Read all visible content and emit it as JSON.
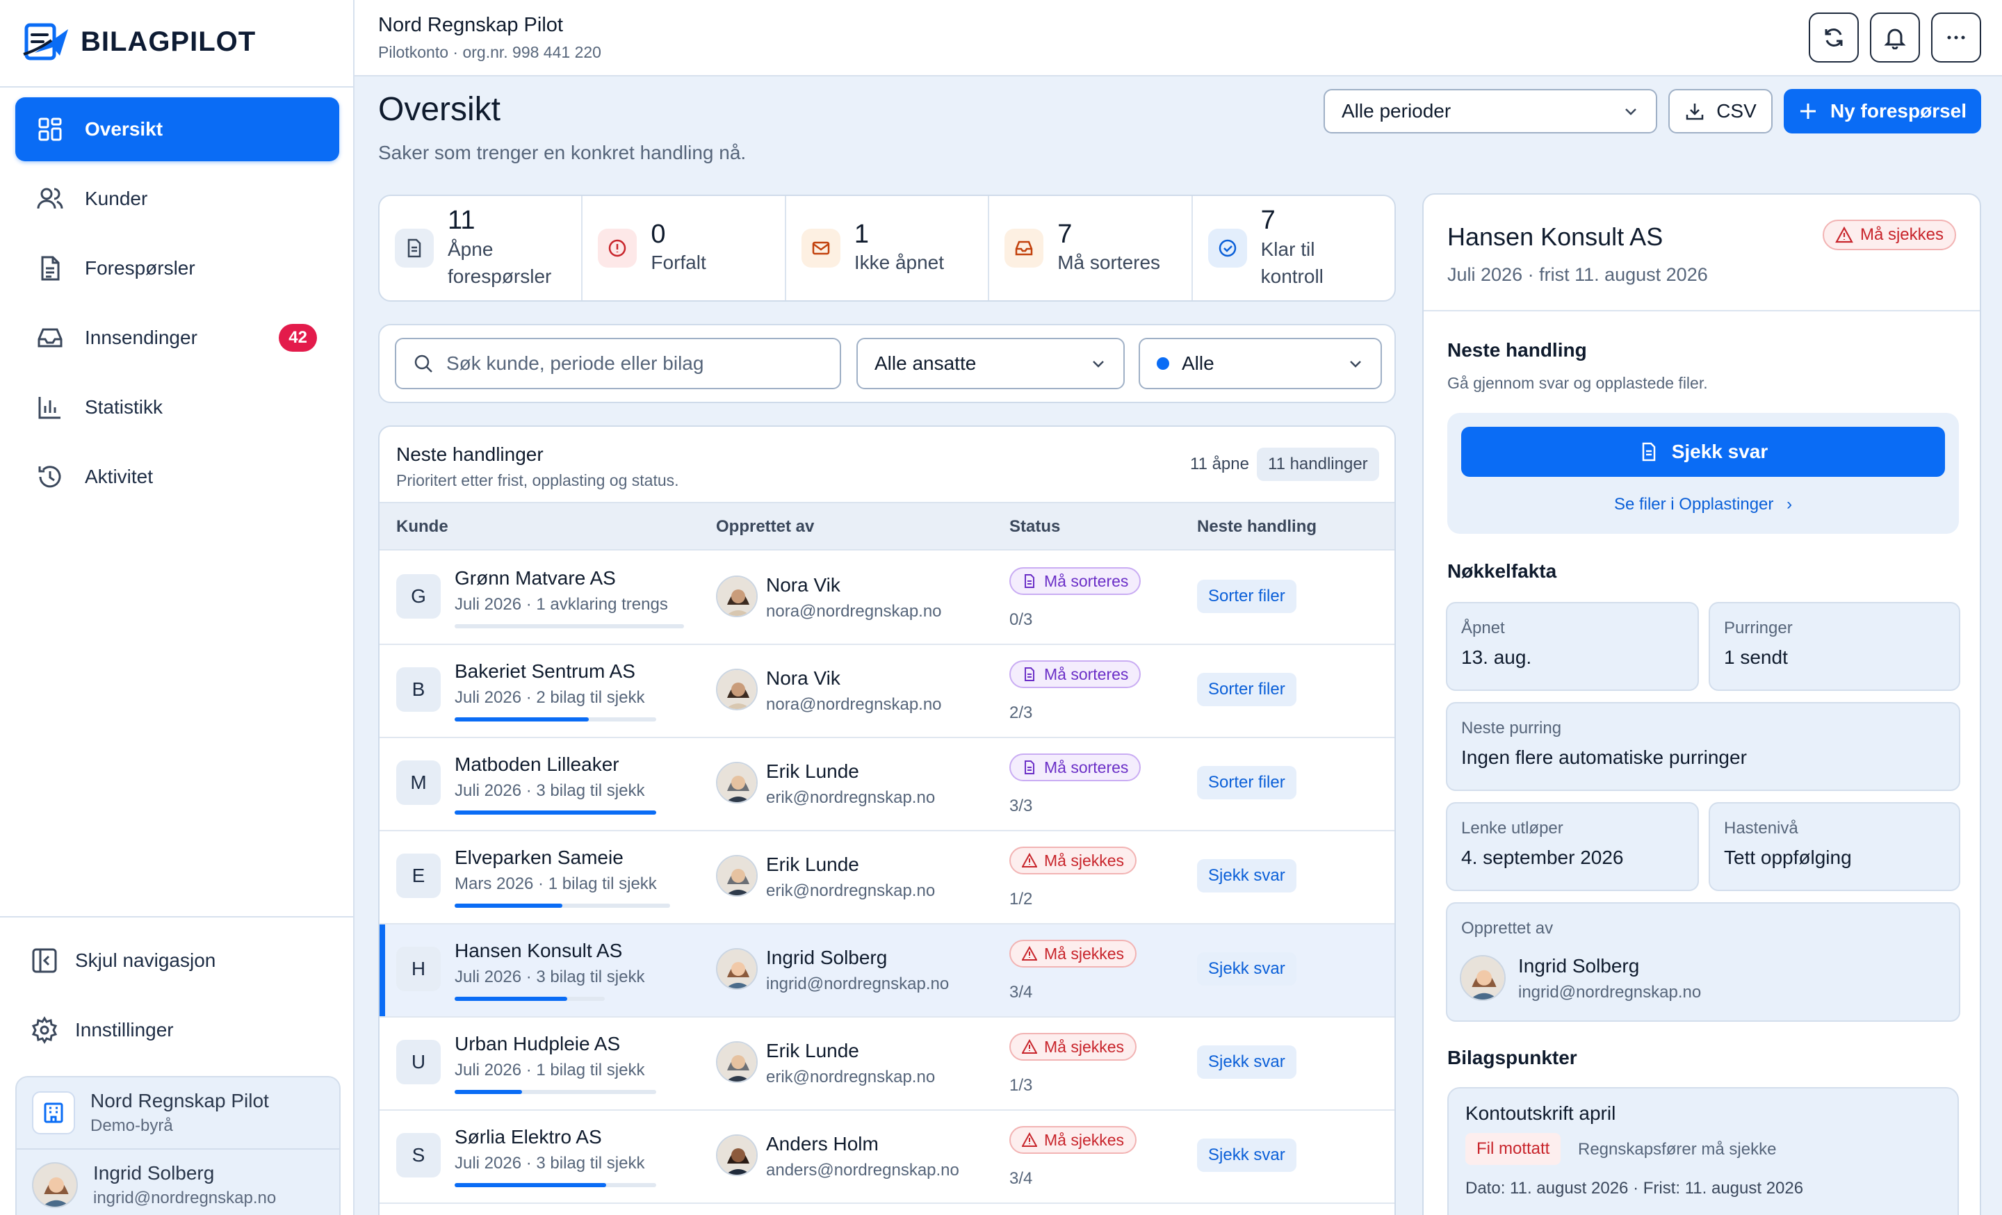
{
  "app": {
    "brand": "BILAGPILOT",
    "company": "Nord Regnskap Pilot",
    "company_sub": "Pilotkonto · org.nr. 998 441 220"
  },
  "sidebar": {
    "items": [
      {
        "label": "Oversikt",
        "icon": "grid-icon",
        "active": true
      },
      {
        "label": "Kunder",
        "icon": "users-icon"
      },
      {
        "label": "Forespørsler",
        "icon": "document-icon"
      },
      {
        "label": "Innsendinger",
        "icon": "inbox-icon",
        "badge": "42"
      },
      {
        "label": "Statistikk",
        "icon": "bar-chart-icon"
      },
      {
        "label": "Aktivitet",
        "icon": "history-icon"
      }
    ],
    "collapse_label": "Skjul navigasjon",
    "settings_label": "Innstillinger",
    "org": {
      "name": "Nord Regnskap Pilot",
      "sub": "Demo-byrå"
    },
    "user": {
      "name": "Ingrid Solberg",
      "email": "ingrid@nordregnskap.no"
    }
  },
  "page": {
    "title": "Oversikt",
    "subtitle": "Saker som trenger en konkret handling nå.",
    "period_select": "Alle perioder",
    "csv_label": "CSV",
    "new_request_label": "Ny forespørsel"
  },
  "stats": [
    {
      "value": "11",
      "label": "Åpne forespørsler",
      "color": "#e8eef6"
    },
    {
      "value": "0",
      "label": "Forfalt",
      "color": "#fde8e8"
    },
    {
      "value": "1",
      "label": "Ikke åpnet",
      "color": "#fdf0e2"
    },
    {
      "value": "7",
      "label": "Må sorteres",
      "color": "#fdf0e2"
    },
    {
      "value": "7",
      "label": "Klar til kontroll",
      "color": "#e3eefc"
    }
  ],
  "filters": {
    "search_placeholder": "Søk kunde, periode eller bilag",
    "staff": "Alle ansatte",
    "status": "Alle"
  },
  "table": {
    "title": "Neste handlinger",
    "subtitle": "Prioritert etter frist, opplasting og status.",
    "open_count": "11 åpne",
    "action_count": "11 handlinger",
    "columns": [
      "Kunde",
      "Opprettet av",
      "Status",
      "Neste handling"
    ],
    "rows": [
      {
        "letter": "G",
        "name": "Grønn Matvare AS",
        "meta": "Juli 2026 · 1 avklaring trengs",
        "progress": 0,
        "creator": "Nora Vik",
        "email": "nora@nordregnskap.no",
        "status": "Må sorteres",
        "frac": "0/3",
        "action": "Sorter filer"
      },
      {
        "letter": "B",
        "name": "Bakeriet Sentrum AS",
        "meta": "Juli 2026 · 2 bilag til sjekk",
        "progress": 0.667,
        "creator": "Nora Vik",
        "email": "nora@nordregnskap.no",
        "status": "Må sorteres",
        "frac": "2/3",
        "action": "Sorter filer"
      },
      {
        "letter": "M",
        "name": "Matboden Lilleaker",
        "meta": "Juli 2026 · 3 bilag til sjekk",
        "progress": 1,
        "creator": "Erik Lunde",
        "email": "erik@nordregnskap.no",
        "status": "Må sorteres",
        "frac": "3/3",
        "action": "Sorter filer"
      },
      {
        "letter": "E",
        "name": "Elveparken Sameie",
        "meta": "Mars 2026 · 1 bilag til sjekk",
        "progress": 0.5,
        "creator": "Erik Lunde",
        "email": "erik@nordregnskap.no",
        "status": "Må sjekkes",
        "frac": "1/2",
        "action": "Sjekk svar"
      },
      {
        "letter": "H",
        "name": "Hansen Konsult AS",
        "meta": "Juli 2026 · 3 bilag til sjekk",
        "progress": 0.75,
        "creator": "Ingrid Solberg",
        "email": "ingrid@nordregnskap.no",
        "status": "Må sjekkes",
        "frac": "3/4",
        "action": "Sjekk svar",
        "selected": true
      },
      {
        "letter": "U",
        "name": "Urban Hudpleie AS",
        "meta": "Juli 2026 · 1 bilag til sjekk",
        "progress": 0.333,
        "creator": "Erik Lunde",
        "email": "erik@nordregnskap.no",
        "status": "Må sjekkes",
        "frac": "1/3",
        "action": "Sjekk svar"
      },
      {
        "letter": "S",
        "name": "Sørlia Elektro AS",
        "meta": "Juli 2026 · 3 bilag til sjekk",
        "progress": 0.75,
        "creator": "Anders Holm",
        "email": "anders@nordregnskap.no",
        "status": "Må sjekkes",
        "frac": "3/4",
        "action": "Sjekk svar"
      }
    ]
  },
  "detail": {
    "name": "Hansen Konsult AS",
    "meta": "Juli 2026 · frist 11. august 2026",
    "badge": "Må sjekkes",
    "next_title": "Neste handling",
    "next_sub": "Gå gjennom svar og opplastede filer.",
    "check_label": "Sjekk svar",
    "files_link": "Se filer i Opplastinger",
    "facts_title": "Nøkkelfakta",
    "facts": {
      "opened_label": "Åpnet",
      "opened": "13. aug.",
      "reminders_label": "Purringer",
      "reminders": "1 sendt",
      "next_reminder_label": "Neste purring",
      "next_reminder": "Ingen flere automatiske purringer",
      "expires_label": "Lenke utløper",
      "expires": "4. september 2026",
      "urgency_label": "Hastenivå",
      "urgency": "Tett oppfølging",
      "creator_label": "Opprettet av",
      "creator": "Ingrid Solberg",
      "creator_email": "ingrid@nordregnskap.no"
    },
    "bilag_title": "Bilagspunkter",
    "bilag": {
      "title": "Kontoutskrift april",
      "tag": "Fil mottatt",
      "note": "Regnskapsfører må sjekke",
      "dates": "Dato: 11. august 2026 · Frist: 11. august 2026"
    }
  },
  "colors": {
    "accent": "#0a6cf5",
    "danger": "#c8242b",
    "sort": "#6b2fc7",
    "badge": "#e31b4b"
  }
}
